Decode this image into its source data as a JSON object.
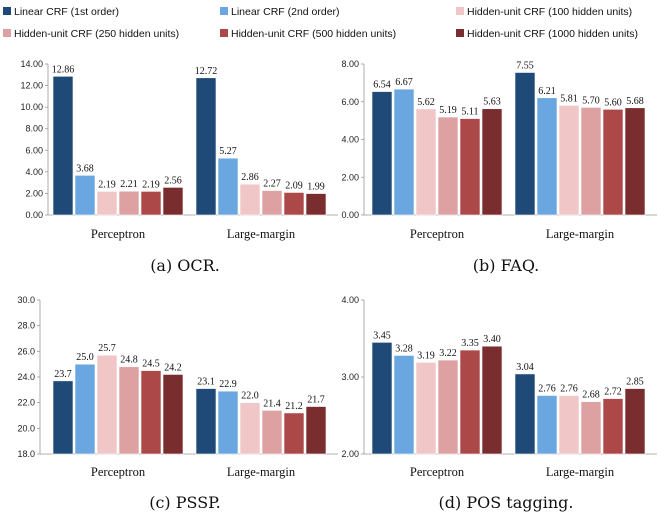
{
  "legend": [
    {
      "label": "Linear CRF (1st order)",
      "color": "#1f4a78"
    },
    {
      "label": "Linear CRF (2nd order)",
      "color": "#6aa6e0"
    },
    {
      "label": "Hidden-unit CRF (100 hidden units)",
      "color": "#f1c6c6"
    },
    {
      "label": "Hidden-unit CRF (250 hidden units)",
      "color": "#dea1a1"
    },
    {
      "label": "Hidden-unit CRF (500 hidden units)",
      "color": "#ad4848"
    },
    {
      "label": "Hidden-unit CRF (1000 hidden units)",
      "color": "#7a2d2e"
    }
  ],
  "chart_data": [
    {
      "type": "bar",
      "caption": "(a) OCR.",
      "categories": [
        "Perceptron",
        "Large-margin"
      ],
      "ylim": [
        0,
        14
      ],
      "yticks": [
        "0.00",
        "2.00",
        "4.00",
        "6.00",
        "8.00",
        "10.00",
        "12.00",
        "14.00"
      ],
      "series": [
        {
          "name": "Linear CRF (1st order)",
          "values": [
            12.86,
            12.72
          ],
          "labels": [
            "12.86",
            "12.72"
          ]
        },
        {
          "name": "Linear CRF (2nd order)",
          "values": [
            3.68,
            5.27
          ],
          "labels": [
            "3.68",
            "5.27"
          ]
        },
        {
          "name": "Hidden-unit CRF (100 hidden units)",
          "values": [
            2.19,
            2.86
          ],
          "labels": [
            "2.19",
            "2.86"
          ]
        },
        {
          "name": "Hidden-unit CRF (250 hidden units)",
          "values": [
            2.21,
            2.27
          ],
          "labels": [
            "2.21",
            "2.27"
          ]
        },
        {
          "name": "Hidden-unit CRF (500 hidden units)",
          "values": [
            2.19,
            2.09
          ],
          "labels": [
            "2.19",
            "2.09"
          ]
        },
        {
          "name": "Hidden-unit CRF (1000 hidden units)",
          "values": [
            2.56,
            1.99
          ],
          "labels": [
            "2.56",
            "1.99"
          ]
        }
      ]
    },
    {
      "type": "bar",
      "caption": "(b) FAQ.",
      "categories": [
        "Perceptron",
        "Large-margin"
      ],
      "ylim": [
        0,
        8
      ],
      "yticks": [
        "0.00",
        "2.00",
        "4.00",
        "6.00",
        "8.00"
      ],
      "series": [
        {
          "name": "Linear CRF (1st order)",
          "values": [
            6.54,
            7.55
          ],
          "labels": [
            "6.54",
            "7.55"
          ]
        },
        {
          "name": "Linear CRF (2nd order)",
          "values": [
            6.67,
            6.21
          ],
          "labels": [
            "6.67",
            "6.21"
          ]
        },
        {
          "name": "Hidden-unit CRF (100 hidden units)",
          "values": [
            5.62,
            5.81
          ],
          "labels": [
            "5.62",
            "5.81"
          ]
        },
        {
          "name": "Hidden-unit CRF (250 hidden units)",
          "values": [
            5.19,
            5.7
          ],
          "labels": [
            "5.19",
            "5.70"
          ]
        },
        {
          "name": "Hidden-unit CRF (500 hidden units)",
          "values": [
            5.11,
            5.6
          ],
          "labels": [
            "5.11",
            "5.60"
          ]
        },
        {
          "name": "Hidden-unit CRF (1000 hidden units)",
          "values": [
            5.63,
            5.68
          ],
          "labels": [
            "5.63",
            "5.68"
          ]
        }
      ]
    },
    {
      "type": "bar",
      "caption": "(c) PSSP.",
      "categories": [
        "Perceptron",
        "Large-margin"
      ],
      "ylim": [
        18,
        30
      ],
      "yticks": [
        "18.0",
        "20.0",
        "22.0",
        "24.0",
        "26.0",
        "28.0",
        "30.0"
      ],
      "series": [
        {
          "name": "Linear CRF (1st order)",
          "values": [
            23.7,
            23.1
          ],
          "labels": [
            "23.7",
            "23.1"
          ]
        },
        {
          "name": "Linear CRF (2nd order)",
          "values": [
            25.0,
            22.9
          ],
          "labels": [
            "25.0",
            "22.9"
          ]
        },
        {
          "name": "Hidden-unit CRF (100 hidden units)",
          "values": [
            25.7,
            22.0
          ],
          "labels": [
            "25.7",
            "22.0"
          ]
        },
        {
          "name": "Hidden-unit CRF (250 hidden units)",
          "values": [
            24.8,
            21.4
          ],
          "labels": [
            "24.8",
            "21.4"
          ]
        },
        {
          "name": "Hidden-unit CRF (500 hidden units)",
          "values": [
            24.5,
            21.2
          ],
          "labels": [
            "24.5",
            "21.2"
          ]
        },
        {
          "name": "Hidden-unit CRF (1000 hidden units)",
          "values": [
            24.2,
            21.7
          ],
          "labels": [
            "24.2",
            "21.7"
          ]
        }
      ]
    },
    {
      "type": "bar",
      "caption": "(d) POS tagging.",
      "categories": [
        "Perceptron",
        "Large-margin"
      ],
      "ylim": [
        2,
        4
      ],
      "yticks": [
        "2.00",
        "3.00",
        "4.00"
      ],
      "series": [
        {
          "name": "Linear CRF (1st order)",
          "values": [
            3.45,
            3.04
          ],
          "labels": [
            "3.45",
            "3.04"
          ]
        },
        {
          "name": "Linear CRF (2nd order)",
          "values": [
            3.28,
            2.76
          ],
          "labels": [
            "3.28",
            "2.76"
          ]
        },
        {
          "name": "Hidden-unit CRF (100 hidden units)",
          "values": [
            3.19,
            2.76
          ],
          "labels": [
            "3.19",
            "2.76"
          ]
        },
        {
          "name": "Hidden-unit CRF (250 hidden units)",
          "values": [
            3.22,
            2.68
          ],
          "labels": [
            "3.22",
            "2.68"
          ]
        },
        {
          "name": "Hidden-unit CRF (500 hidden units)",
          "values": [
            3.35,
            2.72
          ],
          "labels": [
            "3.35",
            "2.72"
          ]
        },
        {
          "name": "Hidden-unit CRF (1000 hidden units)",
          "values": [
            3.4,
            2.85
          ],
          "labels": [
            "3.40",
            "2.85"
          ]
        }
      ]
    }
  ]
}
